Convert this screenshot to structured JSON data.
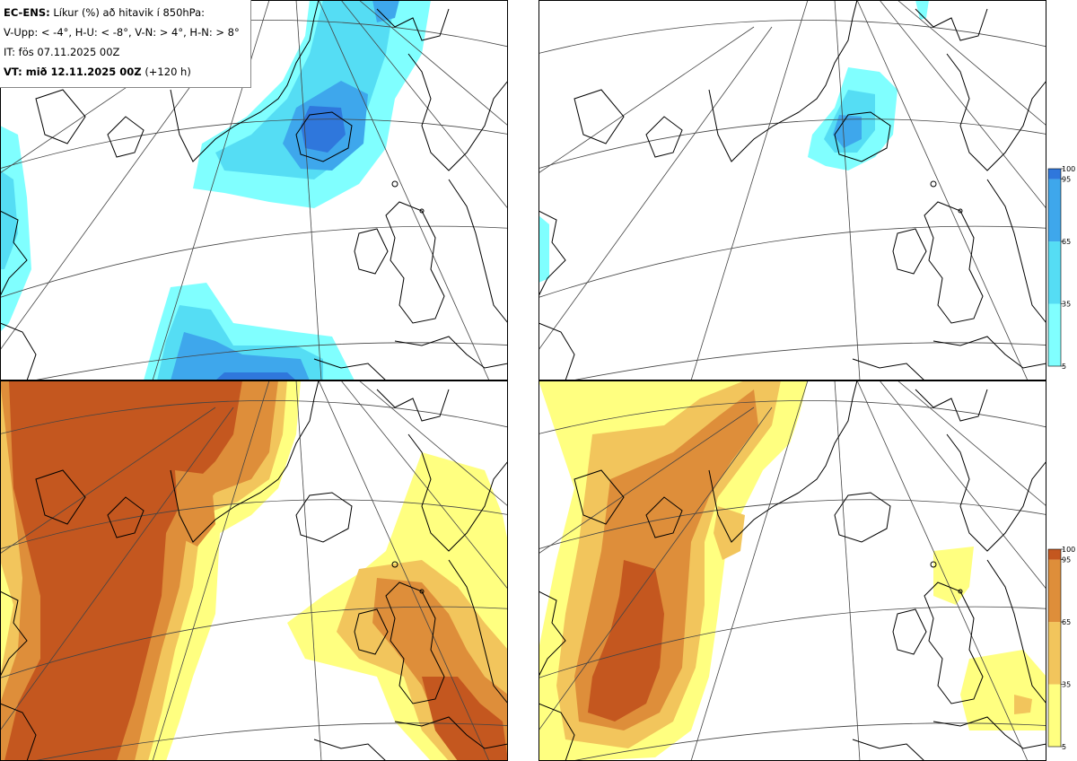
{
  "info": {
    "model": "EC-ENS:",
    "title": "Líkur (%) að hitavik í 850hPa:",
    "legend_text": "V-Upp: < -4°, H-U: < -8°, V-N: > 4°, H-N: > 8°",
    "initial_time": "IT: fös 07.11.2025 00Z",
    "valid_label": "VT: mið 12.11.2025 00Z",
    "lead": "(+120 h)"
  },
  "colorbars": {
    "ticks": [
      "100",
      "95",
      "65",
      "35",
      "5"
    ],
    "cold_colors": [
      "#80ffff",
      "#55ddf4",
      "#3ea7ec",
      "#2f77dc"
    ],
    "warm_colors": [
      "#ffff80",
      "#f2c55c",
      "#de8e3a",
      "#c4571f"
    ]
  },
  "panels": [
    {
      "id": "top-left",
      "quantity": "anomaly < -4°",
      "palette": "cold"
    },
    {
      "id": "top-right",
      "quantity": "anomaly < -8°",
      "palette": "cold"
    },
    {
      "id": "bottom-left",
      "quantity": "anomaly > 4°",
      "palette": "warm"
    },
    {
      "id": "bottom-right",
      "quantity": "anomaly > 8°",
      "palette": "warm"
    }
  ]
}
